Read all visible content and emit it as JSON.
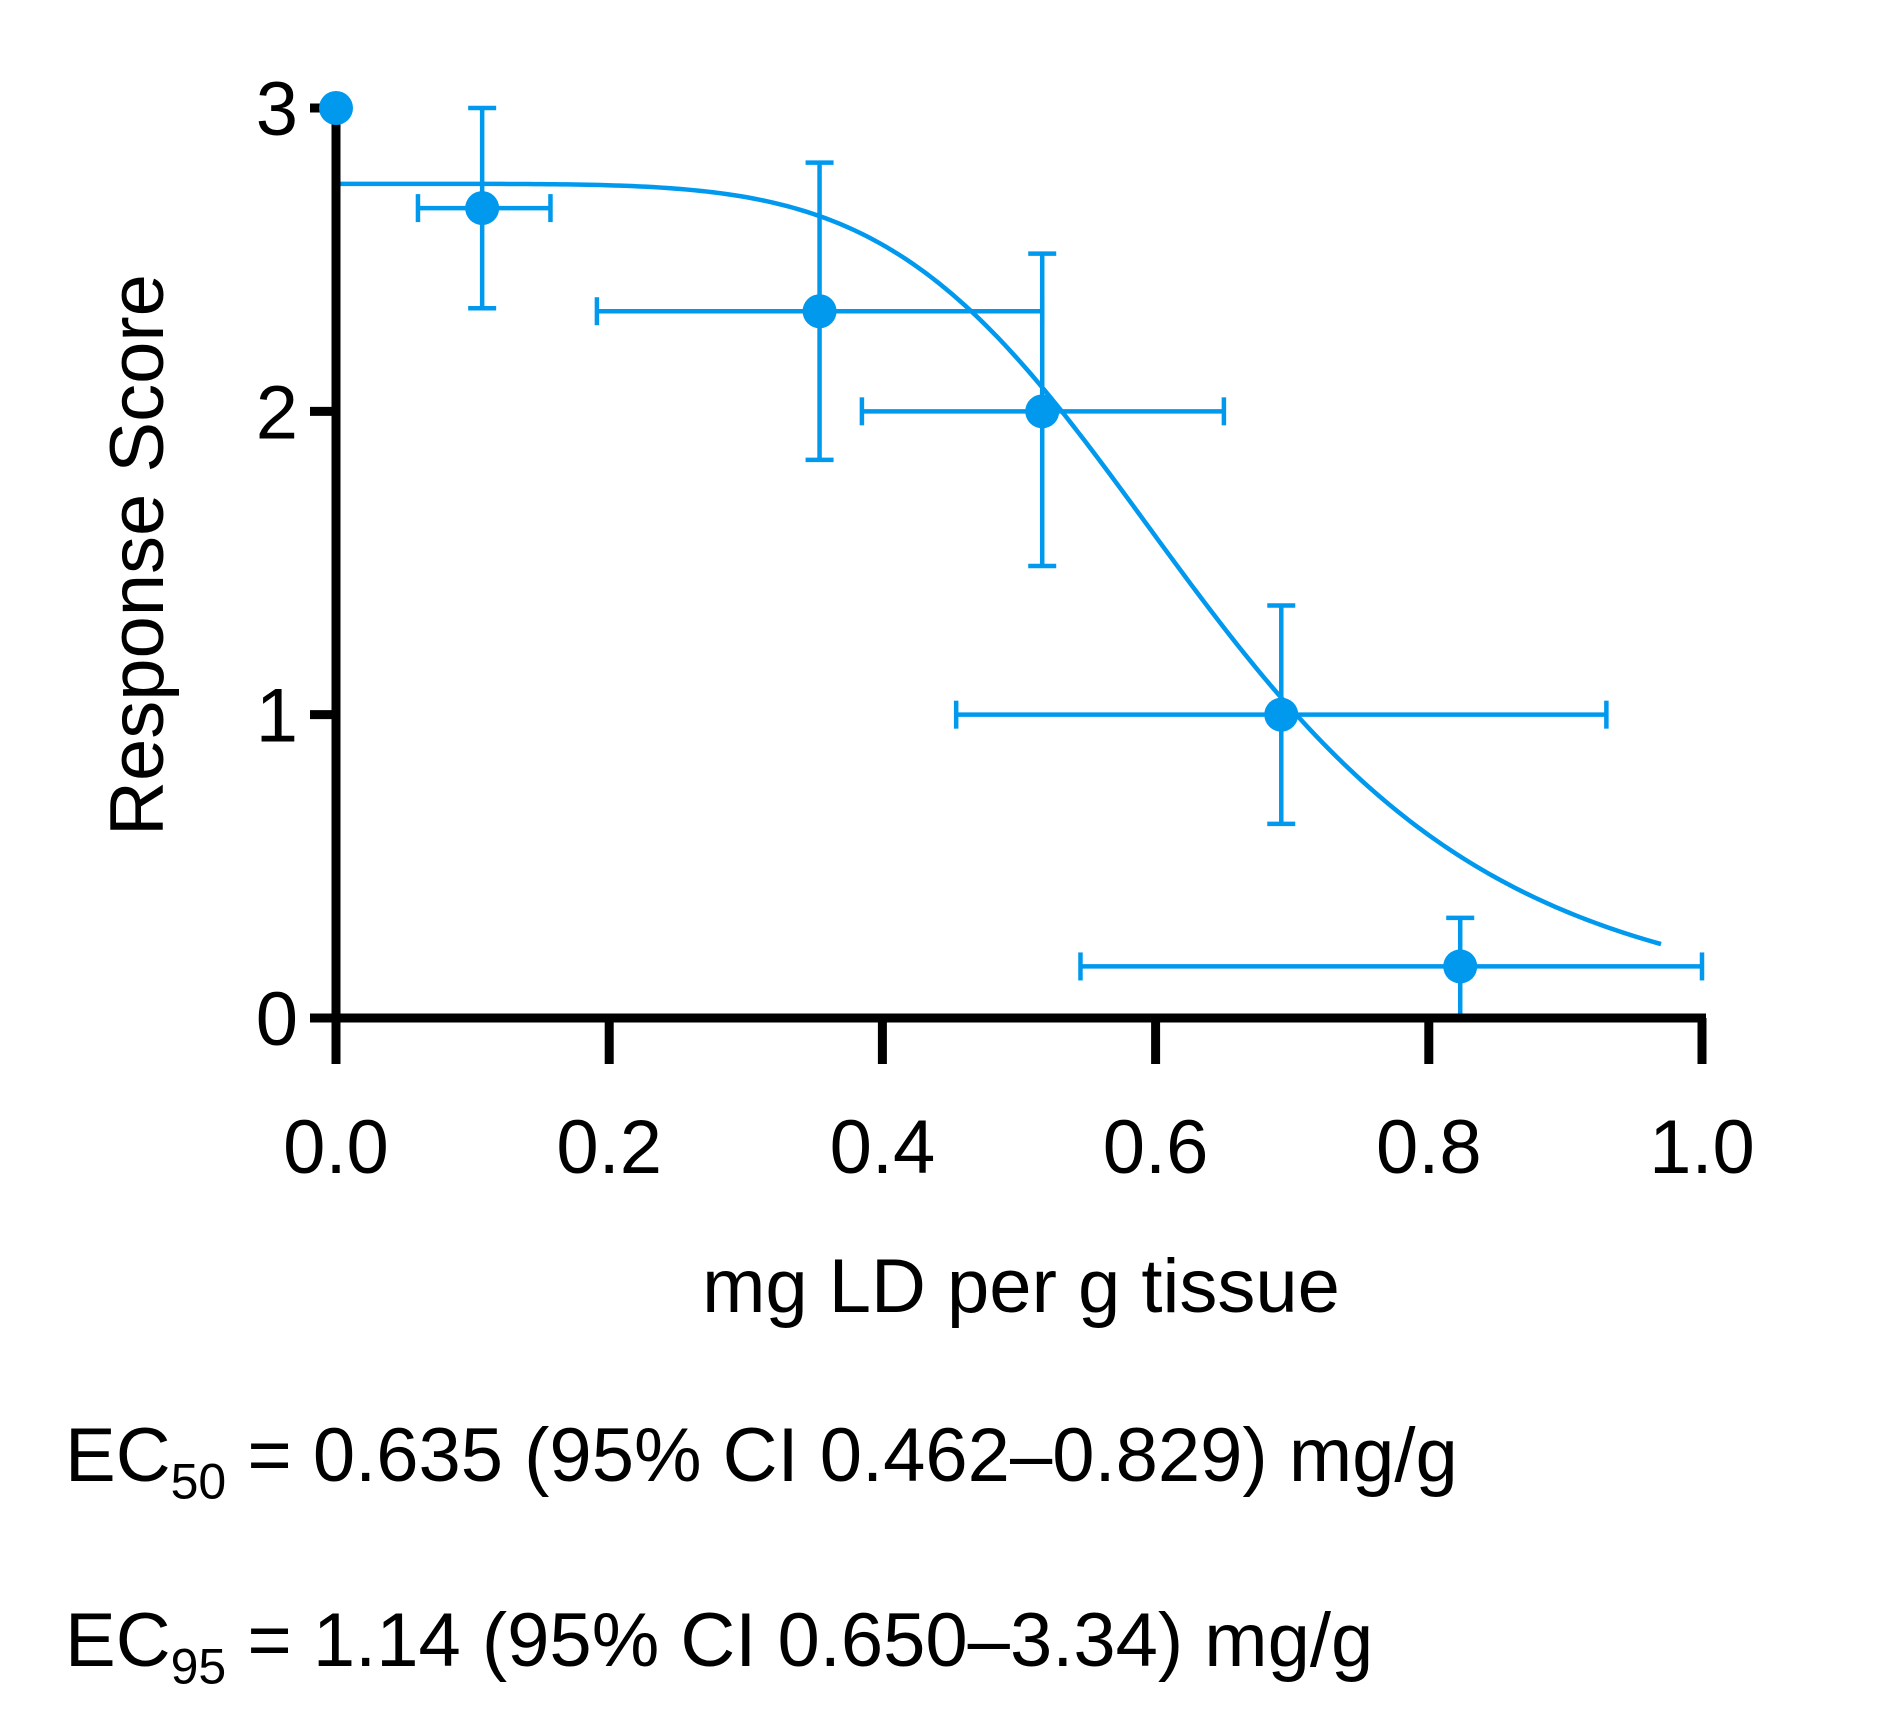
{
  "chart_data": {
    "type": "scatter",
    "title": "",
    "xlabel": "mg LD per g tissue",
    "ylabel": "Response Score",
    "xlim": [
      0.0,
      1.0
    ],
    "ylim": [
      0,
      3
    ],
    "xticks": [
      "0.0",
      "0.2",
      "0.4",
      "0.6",
      "0.8",
      "1.0"
    ],
    "xtick_values": [
      0.0,
      0.2,
      0.4,
      0.6,
      0.8,
      1.0
    ],
    "yticks": [
      "0",
      "1",
      "2",
      "3"
    ],
    "ytick_values": [
      0,
      1,
      2,
      3
    ],
    "grid": false,
    "color": "#0099ee",
    "points": [
      {
        "x": 0.0,
        "y": 3.0,
        "xerr": [
          0.0,
          0.0
        ],
        "yerr": [
          3.0,
          3.0
        ]
      },
      {
        "x": 0.107,
        "y": 2.67,
        "xerr": [
          0.06,
          0.157
        ],
        "yerr": [
          2.34,
          3.0
        ]
      },
      {
        "x": 0.354,
        "y": 2.33,
        "xerr": [
          0.191,
          0.517
        ],
        "yerr": [
          1.84,
          2.82
        ]
      },
      {
        "x": 0.517,
        "y": 2.0,
        "xerr": [
          0.385,
          0.65
        ],
        "yerr": [
          1.49,
          2.52
        ]
      },
      {
        "x": 0.692,
        "y": 1.0,
        "xerr": [
          0.454,
          0.93
        ],
        "yerr": [
          0.64,
          1.36
        ]
      },
      {
        "x": 0.823,
        "y": 0.17,
        "xerr": [
          0.545,
          1.0
        ],
        "yerr": [
          0.0,
          0.33
        ]
      }
    ],
    "fit": {
      "model": "sigmoid",
      "top": 2.75,
      "ec50": 0.635,
      "hill": 5.5,
      "x_range": [
        0.0,
        0.97
      ]
    }
  },
  "annotations": {
    "ec50": {
      "prefix": "EC",
      "sub": "50",
      "text": " = 0.635 (95% CI 0.462–0.829) mg/g"
    },
    "ec95": {
      "prefix": "EC",
      "sub": "95",
      "text": " = 1.14 (95% CI 0.650–3.34) mg/g"
    }
  }
}
